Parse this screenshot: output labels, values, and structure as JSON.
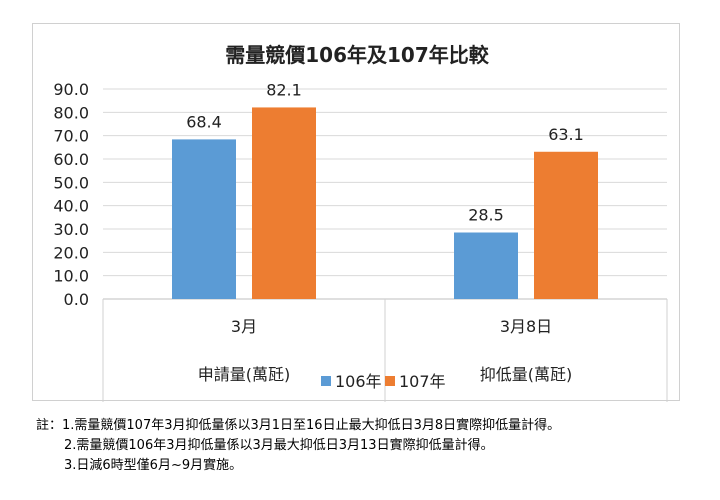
{
  "chart_data": {
    "type": "bar",
    "title": "需量競價106年及107年比較",
    "categories": [
      "3月",
      "3月8日"
    ],
    "groups": [
      "申請量(萬瓩)",
      "抑低量(萬瓩)"
    ],
    "series": [
      {
        "name": "106年",
        "values": [
          68.4,
          28.5
        ],
        "color": "#5b9bd5"
      },
      {
        "name": "107年",
        "values": [
          82.1,
          63.1
        ],
        "color": "#ed7d31"
      }
    ],
    "ylim": [
      0,
      90
    ],
    "yticks": [
      "0.0",
      "10.0",
      "20.0",
      "30.0",
      "40.0",
      "50.0",
      "60.0",
      "70.0",
      "80.0",
      "90.0"
    ],
    "data_labels": [
      [
        "68.4",
        "28.5"
      ],
      [
        "82.1",
        "63.1"
      ]
    ],
    "grid": true,
    "legend_position": "bottom"
  },
  "notes": {
    "line1": "註：1.需量競價107年3月抑低量係以3月1日至16日止最大抑低日3月8日實際抑低量計得。",
    "line2": "2.需量競價106年3月抑低量係以3月最大抑低日3月13日實際抑低量計得。",
    "line3": "3.日減6時型僅6月~9月實施。"
  }
}
